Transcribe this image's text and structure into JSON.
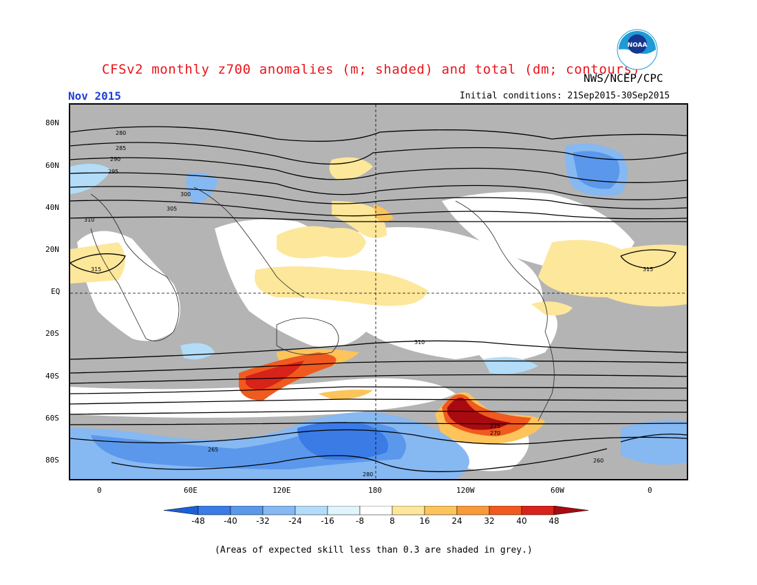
{
  "header": {
    "title": "CFSv2 monthly z700 anomalies (m; shaded) and total (dm; contours)",
    "agency": "NWS/NCEP/CPC",
    "month": "Nov 2015",
    "initial_conditions": "Initial conditions: 21Sep2015-30Sep2015",
    "logo_text": "NOAA"
  },
  "axes": {
    "lat_labels": [
      "80N",
      "60N",
      "40N",
      "20N",
      "EQ",
      "20S",
      "40S",
      "60S",
      "80S"
    ],
    "lon_labels": [
      "0",
      "60E",
      "120E",
      "180",
      "120W",
      "60W",
      "0"
    ]
  },
  "contour_labels": [
    "280",
    "285",
    "290",
    "295",
    "300",
    "305",
    "310",
    "315",
    "260",
    "265",
    "270",
    "275"
  ],
  "colorbar": {
    "ticks": [
      "-48",
      "-40",
      "-32",
      "-24",
      "-16",
      "-8",
      "8",
      "16",
      "24",
      "32",
      "40",
      "48"
    ],
    "colors": [
      "#1c5fd8",
      "#3a7be6",
      "#5b98ec",
      "#86b8f2",
      "#b2dcf8",
      "#dff4fb",
      "#ffffff",
      "#fde79a",
      "#fcc45a",
      "#f89a3a",
      "#f05a1e",
      "#d8231a",
      "#a80a10"
    ]
  },
  "footnote": "(Areas of expected skill less than 0.3 are shaded in grey.)",
  "colors": {
    "title": "#e8141a",
    "month": "#1f3fd8",
    "skill_grey": "#b4b4b4"
  }
}
